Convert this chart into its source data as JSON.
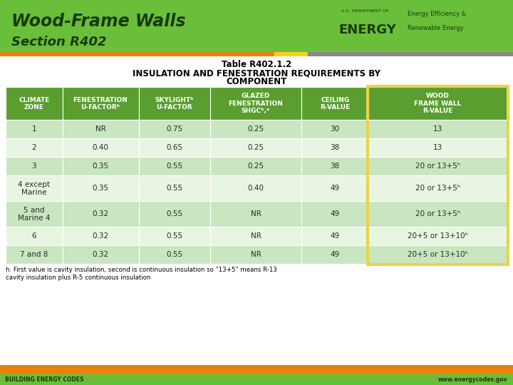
{
  "title_line1": "Wood-Frame Walls",
  "title_line2": "Section R402",
  "header_bg": "#6abf3a",
  "footer_orange": "#e8820c",
  "yellow_bar": "#f5d020",
  "gray_bar": "#888888",
  "table_title1": "Table R402.1.2",
  "table_title2": "INSULATION AND FENESTRATION REQUIREMENTS BY",
  "table_title3": "COMPONENT",
  "col_headers": [
    "CLIMATE\nZONE",
    "FENESTRATION\nU-FACTORᵇ",
    "SKYLIGHTᵇ\nU-FACTOR",
    "GLAZED\nFENESTRATION\nSHGCᵇ,ᵉ",
    "CEILING\nR-VALUE",
    "WOOD\nFRAME WALL\nR-VALUE"
  ],
  "rows": [
    [
      "1",
      "NR",
      "0.75",
      "0.25",
      "30",
      "13"
    ],
    [
      "2",
      "0.40",
      "0.65",
      "0.25",
      "38",
      "13"
    ],
    [
      "3",
      "0.35",
      "0.55",
      "0.25",
      "38",
      "20 or 13+5ʰ"
    ],
    [
      "4 except\nMarine",
      "0.35",
      "0.55",
      "0.40",
      "49",
      "20 or 13+5ʰ"
    ],
    [
      "5 and\nMarine 4",
      "0.32",
      "0.55",
      "NR",
      "49",
      "20 or 13+5ʰ"
    ],
    [
      "6",
      "0.32",
      "0.55",
      "NR",
      "49",
      "20+5 or 13+10ʰ"
    ],
    [
      "7 and 8",
      "0.32",
      "0.55",
      "NR",
      "49",
      "20+5 or 13+10ʰ"
    ]
  ],
  "row_colors_even": "#c8e6c0",
  "row_colors_odd": "#e8f5e2",
  "header_cell_bg": "#5a9e2f",
  "highlighted_col_border": "#e8d44d",
  "header_text_color": "#ffffff",
  "data_text_color": "#2a2a2a",
  "footnote": "h. First value is cavity insulation, second is continuous insulation so \"13+5\" means R-13\ncavity insulation plus R-5 continuous insulation",
  "footer_left": "BUILDING ENERGY CODES",
  "footer_right": "www.energycodes.gov"
}
